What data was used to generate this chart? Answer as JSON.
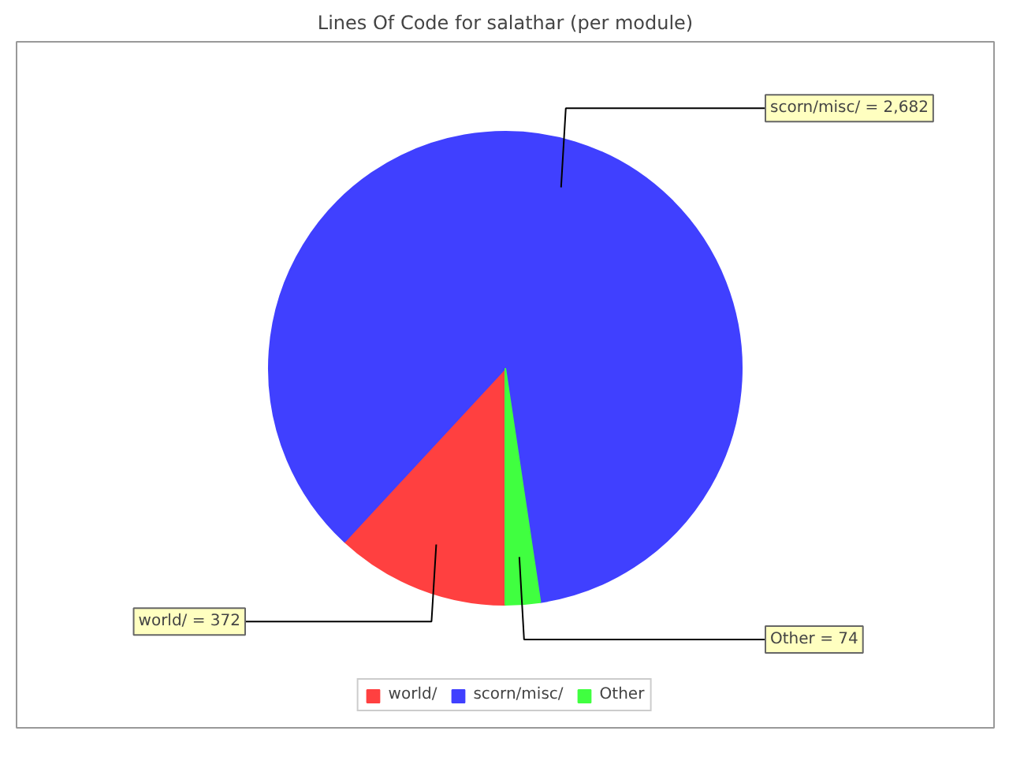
{
  "chart_data": {
    "type": "pie",
    "title": "Lines Of Code for salathar (per module)",
    "categories": [
      "world/",
      "scorn/misc/",
      "Other"
    ],
    "values": [
      372,
      2682,
      74
    ],
    "colors": [
      "#ff4040",
      "#4040ff",
      "#40ff40"
    ],
    "value_labels": [
      "world/ = 372",
      "scorn/misc/ = 2,682",
      "Other = 74"
    ],
    "legend": "bottom"
  }
}
